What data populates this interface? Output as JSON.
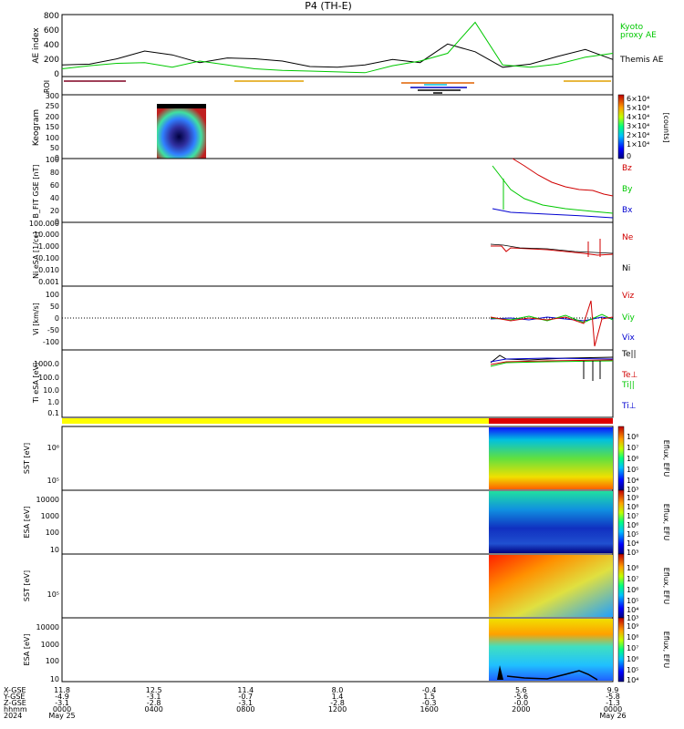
{
  "chart_data": {
    "type": "line",
    "title": "P4 (TH-E)",
    "panels": [
      {
        "id": "ae",
        "ylabel": "AE index",
        "yticks": [
          "800",
          "600",
          "400",
          "200",
          "0"
        ],
        "legend": [
          {
            "text": "Kyoto",
            "color": "#00c800"
          },
          {
            "text": "proxy AE",
            "color": "#00c800"
          },
          {
            "text": "Themis AE",
            "color": "#000000"
          }
        ],
        "series": [
          {
            "color": "#000000",
            "x": [
              0,
              0.05,
              0.1,
              0.15,
              0.2,
              0.25,
              0.3,
              0.35,
              0.4,
              0.45,
              0.5,
              0.55,
              0.6,
              0.65,
              0.7,
              0.75,
              0.8,
              0.85,
              0.9,
              0.95,
              1.0
            ],
            "y": [
              150,
              160,
              230,
              330,
              280,
              180,
              240,
              230,
              200,
              130,
              120,
              150,
              220,
              180,
              420,
              320,
              120,
              160,
              260,
              350,
              220
            ]
          },
          {
            "color": "#00c800",
            "x": [
              0,
              0.05,
              0.1,
              0.15,
              0.2,
              0.25,
              0.3,
              0.35,
              0.4,
              0.45,
              0.5,
              0.55,
              0.6,
              0.65,
              0.7,
              0.75,
              0.8,
              0.85,
              0.9,
              0.95,
              1.0
            ],
            "y": [
              100,
              140,
              170,
              180,
              120,
              200,
              150,
              100,
              80,
              70,
              60,
              50,
              140,
              200,
              300,
              700,
              150,
              120,
              160,
              250,
              300
            ]
          }
        ]
      },
      {
        "id": "roi",
        "ylabel": "ROI"
      },
      {
        "id": "keogram",
        "ylabel": "Keogram",
        "yticks": [
          "300",
          "250",
          "200",
          "150",
          "100",
          "50",
          "0"
        ],
        "colorbar": [
          "6×10⁴",
          "5×10⁴",
          "4×10⁴",
          "3×10⁴",
          "2×10⁴",
          "1×10⁴",
          "0"
        ],
        "cbar_label": "[counts]"
      },
      {
        "id": "bfit",
        "ylabel": "B_FIT GSE [nT]",
        "yticks": [
          "100",
          "80",
          "60",
          "40",
          "20",
          "0"
        ],
        "legend": [
          {
            "text": "Bz",
            "color": "#d00000"
          },
          {
            "text": "By",
            "color": "#00c800"
          },
          {
            "text": "Bx",
            "color": "#0000d0"
          }
        ]
      },
      {
        "id": "ni",
        "ylabel": "Ni eSA [1/cc]",
        "yticks": [
          "100.000",
          "10.000",
          "1.000",
          "0.100",
          "0.010",
          "0.001"
        ],
        "legend": [
          {
            "text": "Ne",
            "color": "#d00000"
          },
          {
            "text": "Ni",
            "color": "#000000"
          }
        ]
      },
      {
        "id": "vi",
        "ylabel": "Vi [km/s]",
        "yticks": [
          "100",
          "50",
          "0",
          "-50",
          "-100"
        ],
        "legend": [
          {
            "text": "Viz",
            "color": "#d00000"
          },
          {
            "text": "Viy",
            "color": "#00c800"
          },
          {
            "text": "Vix",
            "color": "#0000d0"
          }
        ]
      },
      {
        "id": "ti",
        "ylabel": "Ti eSA [eV]",
        "yticks": [
          "1000.0",
          "100.0",
          "10.0",
          "1.0",
          "0.1"
        ],
        "legend": [
          {
            "text": "Te||",
            "color": "#000000"
          },
          {
            "text": "Te⊥",
            "color": "#d00000"
          },
          {
            "text": "Ti||",
            "color": "#00c800"
          },
          {
            "text": "Ti⊥",
            "color": "#0000d0"
          }
        ]
      },
      {
        "id": "sst_e",
        "ylabel": "SST [eV]",
        "yticks": [
          "10⁶",
          "10⁵"
        ],
        "colorbar": [
          "10⁸",
          "10⁷",
          "10⁶",
          "10⁵",
          "10⁴",
          "10³"
        ],
        "cbar_label": "Eflux, EFU"
      },
      {
        "id": "esa_e",
        "ylabel": "ESA [eV]",
        "yticks": [
          "10000",
          "1000",
          "100",
          "10"
        ],
        "colorbar": [
          "10⁹",
          "10⁸",
          "10⁷",
          "10⁶",
          "10⁵",
          "10⁴",
          "10³"
        ],
        "cbar_label": "Eflux, EFU"
      },
      {
        "id": "sst_i",
        "ylabel": "SST [eV]",
        "yticks": [
          "10⁵"
        ],
        "colorbar": [
          "10⁸",
          "10⁷",
          "10⁶",
          "10⁵",
          "10⁴",
          "10³"
        ],
        "cbar_label": "Eflux, EFU"
      },
      {
        "id": "esa_i",
        "ylabel": "ESA [eV]",
        "yticks": [
          "10000",
          "1000",
          "100",
          "10"
        ],
        "colorbar": [
          "10⁹",
          "10⁸",
          "10⁷",
          "10⁶",
          "10⁵",
          "10⁴"
        ],
        "cbar_label": "Eflux, EFU"
      }
    ],
    "x_axis": {
      "row_labels": [
        "X-GSE",
        "Y-GSE",
        "Z-GSE",
        "hhmm",
        "2024"
      ],
      "columns": [
        [
          "11.8",
          "-4.9",
          "-3.1",
          "0000",
          "May 25"
        ],
        [
          "12.5",
          "-3.1",
          "-2.8",
          "0400",
          ""
        ],
        [
          "11.4",
          "-0.7",
          "-3.1",
          "0800",
          ""
        ],
        [
          "8.0",
          "1.4",
          "-2.8",
          "1200",
          ""
        ],
        [
          "-0.4",
          "1.5",
          "-0.3",
          "1600",
          ""
        ],
        [
          "5.6",
          "-5.6",
          "-0.0",
          "2000",
          ""
        ],
        [
          "9.9",
          "-5.8",
          "-1.3",
          "0000",
          "May 26"
        ]
      ]
    }
  }
}
